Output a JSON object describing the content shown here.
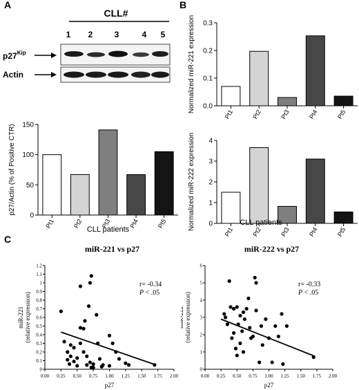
{
  "panels": {
    "a": "A",
    "b": "B",
    "c": "C"
  },
  "western_blot": {
    "title": "CLL#",
    "lanes": [
      "1",
      "2",
      "3",
      "4",
      "5"
    ],
    "row_labels": {
      "p27_main": "p27",
      "p27_sup": "Kip",
      "actin": "Actin"
    }
  },
  "chart_data": [
    {
      "id": "p27_actin_bar",
      "type": "bar",
      "categories": [
        "Pt1",
        "Pt2",
        "Pt3",
        "Pt4",
        "Pt5"
      ],
      "values": [
        100,
        67,
        141,
        67,
        105
      ],
      "colors": [
        "#ffffff",
        "#d4d4d4",
        "#7f7f7f",
        "#474747",
        "#141414"
      ],
      "xlabel": "CLL patients",
      "ylabel": "p27/Actin (% of Positive CTR)",
      "ylim": [
        0,
        150
      ],
      "yticks": [
        "0",
        "50",
        "100",
        "150"
      ],
      "grid": false
    },
    {
      "id": "mir221_bar",
      "type": "bar",
      "categories": [
        "Pt1",
        "Pt2",
        "Pt3",
        "Pt4",
        "Pt5"
      ],
      "values": [
        0.07,
        0.197,
        0.03,
        0.253,
        0.035
      ],
      "colors": [
        "#ffffff",
        "#d4d4d4",
        "#7f7f7f",
        "#474747",
        "#141414"
      ],
      "xlabel": "",
      "ylabel": "Normalized miR-221 expression",
      "ylim": [
        0,
        0.3
      ],
      "yticks": [
        "0.0",
        "0.1",
        "0.2",
        "0.3"
      ],
      "grid": false
    },
    {
      "id": "mir222_bar",
      "type": "bar",
      "categories": [
        "Pt1",
        "Pt2",
        "Pt3",
        "Pt4",
        "Pt5"
      ],
      "values": [
        1.5,
        3.65,
        0.82,
        3.1,
        0.55
      ],
      "colors": [
        "#ffffff",
        "#d4d4d4",
        "#7f7f7f",
        "#474747",
        "#141414"
      ],
      "xlabel": "CLL patients",
      "ylabel": "Normalized miR-222 expression",
      "ylim": [
        0,
        4
      ],
      "yticks": [
        "0",
        "1",
        "2",
        "3",
        "4"
      ],
      "grid": false
    },
    {
      "id": "mir221_scatter",
      "type": "scatter",
      "title": "miR-221 vs p27",
      "xlabel": "p27",
      "ylabel": "miR-221",
      "ylabel2": "(relative expression)",
      "xlim": [
        0,
        2
      ],
      "ylim": [
        0,
        1.2
      ],
      "xticks": [
        "0.00",
        "0.25",
        "0.50",
        "0.75",
        "1.00",
        "1.25",
        "1.50",
        "1.75",
        "2.00"
      ],
      "yticks": [
        "0",
        "0.1",
        "0.2",
        "0.3",
        "0.4",
        "0.5",
        "0.6",
        "0.7",
        "0.8",
        "0.9",
        "1",
        "1.1",
        "1.2"
      ],
      "annotation": {
        "r": "r= -0.34",
        "p_italic": "P",
        "p_rest": " < .05"
      },
      "trendline": {
        "x": [
          0.25,
          1.72
        ],
        "y": [
          0.43,
          0.05
        ]
      },
      "points": [
        [
          0.25,
          0.67
        ],
        [
          0.3,
          0.32
        ],
        [
          0.35,
          0.2
        ],
        [
          0.35,
          0.11
        ],
        [
          0.38,
          0.06
        ],
        [
          0.4,
          0.28
        ],
        [
          0.4,
          0.15
        ],
        [
          0.45,
          0.09
        ],
        [
          0.45,
          0.25
        ],
        [
          0.5,
          0.13
        ],
        [
          0.5,
          0.04
        ],
        [
          0.55,
          0.48
        ],
        [
          0.55,
          0.3
        ],
        [
          0.55,
          0.96
        ],
        [
          0.6,
          0.47
        ],
        [
          0.6,
          0.2
        ],
        [
          0.62,
          0.56
        ],
        [
          0.65,
          0.05
        ],
        [
          0.65,
          0.15
        ],
        [
          0.68,
          0.73
        ],
        [
          0.7,
          1.0
        ],
        [
          0.7,
          0.08
        ],
        [
          0.72,
          1.08
        ],
        [
          0.72,
          0.02
        ],
        [
          0.75,
          0.06
        ],
        [
          0.75,
          0.02
        ],
        [
          0.8,
          0.63
        ],
        [
          0.82,
          0.3
        ],
        [
          0.85,
          0.12
        ],
        [
          0.88,
          0.03
        ],
        [
          0.9,
          0.05
        ],
        [
          1.0,
          0.04
        ],
        [
          1.0,
          0.39
        ],
        [
          1.05,
          0.3
        ],
        [
          1.1,
          0.2
        ],
        [
          1.15,
          0.12
        ],
        [
          1.25,
          0.07
        ],
        [
          1.3,
          0.05
        ],
        [
          1.7,
          0.05
        ]
      ]
    },
    {
      "id": "mir222_scatter",
      "type": "scatter",
      "title": "miR-222 vs p27",
      "xlabel": "p27",
      "ylabel": "miR-222",
      "ylabel2": "(relative expression)",
      "xlim": [
        0,
        2
      ],
      "ylim": [
        0,
        6
      ],
      "xticks": [
        "0.00",
        "0.25",
        "0.50",
        "0.75",
        "1.00",
        "1.25",
        "1.50",
        "1.75",
        "2.00"
      ],
      "yticks": [
        "0",
        "1",
        "2",
        "3",
        "4",
        "5",
        "6"
      ],
      "annotation": {
        "r": "r= -0.33",
        "p_italic": "P",
        "p_rest": " < .05"
      },
      "trendline": {
        "x": [
          0.25,
          1.72
        ],
        "y": [
          2.9,
          0.75
        ]
      },
      "points": [
        [
          0.3,
          3.2
        ],
        [
          0.32,
          3.0
        ],
        [
          0.35,
          2.6
        ],
        [
          0.38,
          5.1
        ],
        [
          0.4,
          3.6
        ],
        [
          0.42,
          1.8
        ],
        [
          0.45,
          3.5
        ],
        [
          0.45,
          2.1
        ],
        [
          0.48,
          1.2
        ],
        [
          0.5,
          3.6
        ],
        [
          0.5,
          0.8
        ],
        [
          0.52,
          2.6
        ],
        [
          0.55,
          1.5
        ],
        [
          0.55,
          3.1
        ],
        [
          0.58,
          2.2
        ],
        [
          0.6,
          3.3
        ],
        [
          0.6,
          1.0
        ],
        [
          0.62,
          2.9
        ],
        [
          0.65,
          3.5
        ],
        [
          0.68,
          4.1
        ],
        [
          0.7,
          2.4
        ],
        [
          0.72,
          1.8
        ],
        [
          0.75,
          1.9
        ],
        [
          0.78,
          5.3
        ],
        [
          0.8,
          5.0
        ],
        [
          0.8,
          3.4
        ],
        [
          0.85,
          0.4
        ],
        [
          0.88,
          2.5
        ],
        [
          0.9,
          1.4
        ],
        [
          0.95,
          2.9
        ],
        [
          1.0,
          1.8
        ],
        [
          1.05,
          0.4
        ],
        [
          1.1,
          2.5
        ],
        [
          1.15,
          1.9
        ],
        [
          1.2,
          3.2
        ],
        [
          1.22,
          0.3
        ],
        [
          1.28,
          2.5
        ],
        [
          1.7,
          0.7
        ]
      ]
    }
  ]
}
